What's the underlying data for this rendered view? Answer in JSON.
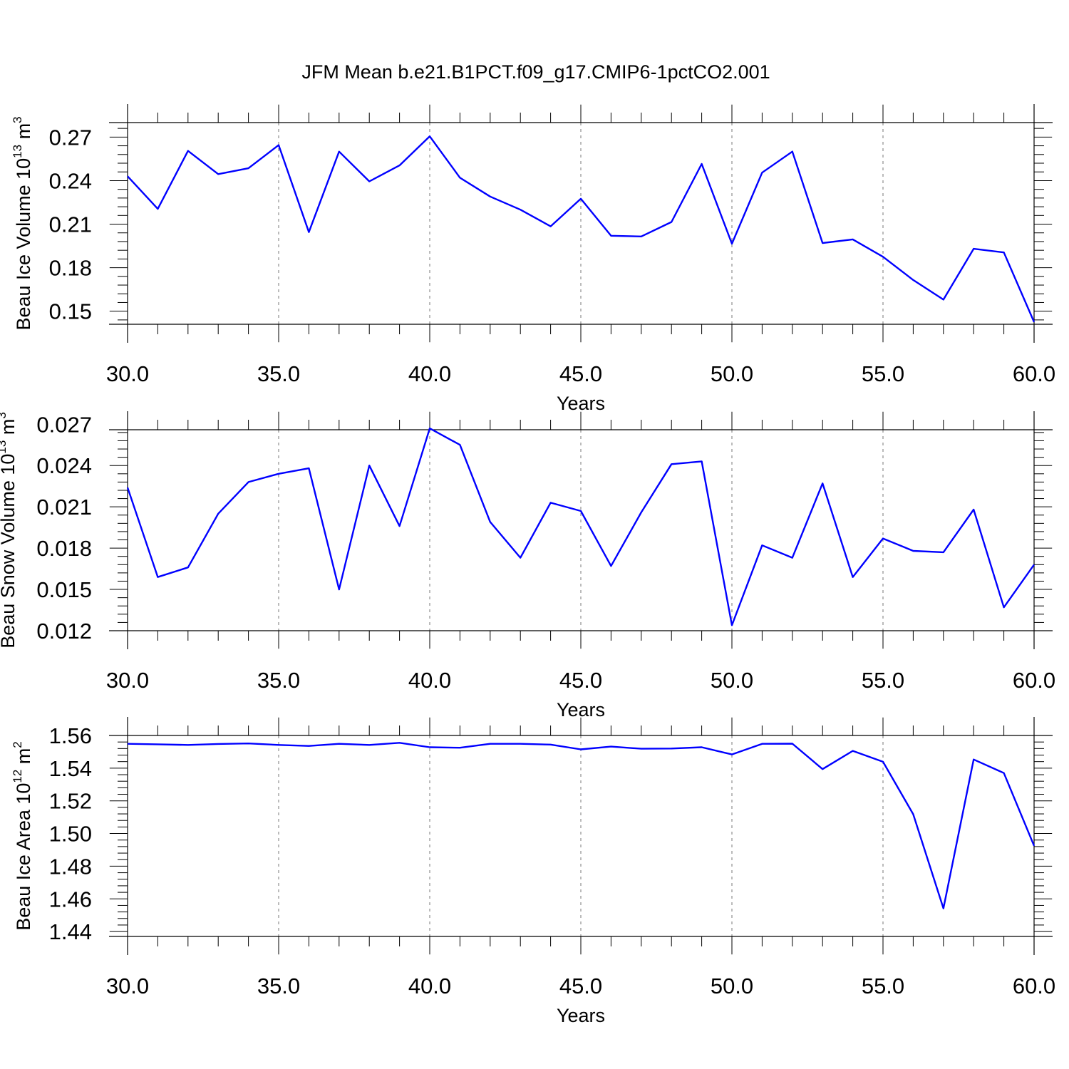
{
  "title": "JFM Mean b.e21.B1PCT.f09_g17.CMIP6-1pctCO2.001",
  "chart_data": [
    {
      "type": "line",
      "xlabel": "Years",
      "ylabel_main": "Beau Ice Volume 10",
      "ylabel_exp": "13",
      "ylabel_unit": " m",
      "ylabel_unit_exp": "3",
      "xlim": [
        30,
        60
      ],
      "ylim": [
        0.141,
        0.28
      ],
      "xticks": [
        30,
        35,
        40,
        45,
        50,
        55,
        60
      ],
      "xtick_labels": [
        "30.0",
        "35.0",
        "40.0",
        "45.0",
        "50.0",
        "55.0",
        "60.0"
      ],
      "yticks": [
        0.15,
        0.18,
        0.21,
        0.24,
        0.27
      ],
      "ytick_labels": [
        "0.15",
        "0.18",
        "0.21",
        "0.24",
        "0.27"
      ],
      "grid": "vertical-dashed",
      "series": [
        {
          "color": "#0000ff",
          "x": [
            30,
            31,
            32,
            33,
            34,
            35,
            36,
            37,
            38,
            39,
            40,
            41,
            42,
            43,
            44,
            45,
            46,
            47,
            48,
            49,
            50,
            51,
            52,
            53,
            54,
            55,
            56,
            57,
            58,
            59,
            60
          ],
          "y": [
            0.243,
            0.2205,
            0.2605,
            0.2445,
            0.2485,
            0.2645,
            0.2045,
            0.26,
            0.2395,
            0.2505,
            0.2705,
            0.242,
            0.229,
            0.22,
            0.2085,
            0.2275,
            0.202,
            0.2015,
            0.2115,
            0.2515,
            0.1965,
            0.2455,
            0.26,
            0.197,
            0.1995,
            0.1875,
            0.1715,
            0.158,
            0.193,
            0.1905,
            0.1425
          ]
        }
      ]
    },
    {
      "type": "line",
      "xlabel": "Years",
      "ylabel_main": "Beau Snow Volume 10",
      "ylabel_exp": "13",
      "ylabel_unit": " m",
      "ylabel_unit_exp": "3",
      "xlim": [
        30,
        60
      ],
      "ylim": [
        0.012,
        0.0266
      ],
      "xticks": [
        30,
        35,
        40,
        45,
        50,
        55,
        60
      ],
      "xtick_labels": [
        "30.0",
        "35.0",
        "40.0",
        "45.0",
        "50.0",
        "55.0",
        "60.0"
      ],
      "yticks": [
        0.012,
        0.015,
        0.018,
        0.021,
        0.024,
        0.027
      ],
      "ytick_labels": [
        "0.012",
        "0.015",
        "0.018",
        "0.021",
        "0.024",
        "0.027"
      ],
      "grid": "vertical-dashed",
      "series": [
        {
          "color": "#0000ff",
          "x": [
            30,
            31,
            32,
            33,
            34,
            35,
            36,
            37,
            38,
            39,
            40,
            41,
            42,
            43,
            44,
            45,
            46,
            47,
            48,
            49,
            50,
            51,
            52,
            53,
            54,
            55,
            56,
            57,
            58,
            59,
            60
          ],
          "y": [
            0.0224,
            0.0159,
            0.0166,
            0.0205,
            0.0228,
            0.0234,
            0.0238,
            0.015,
            0.024,
            0.0196,
            0.0267,
            0.0255,
            0.0199,
            0.0173,
            0.0213,
            0.0207,
            0.0167,
            0.0206,
            0.0241,
            0.0243,
            0.0124,
            0.0182,
            0.0173,
            0.0227,
            0.0159,
            0.0187,
            0.0178,
            0.0177,
            0.0208,
            0.0137,
            0.0168
          ]
        }
      ]
    },
    {
      "type": "line",
      "xlabel": "Years",
      "ylabel_main": "Beau Ice Area 10",
      "ylabel_exp": "12",
      "ylabel_unit": " m",
      "ylabel_unit_exp": "2",
      "xlim": [
        30,
        60
      ],
      "ylim": [
        1.437,
        1.56
      ],
      "xticks": [
        30,
        35,
        40,
        45,
        50,
        55,
        60
      ],
      "xtick_labels": [
        "30.0",
        "35.0",
        "40.0",
        "45.0",
        "50.0",
        "55.0",
        "60.0"
      ],
      "yticks": [
        1.44,
        1.46,
        1.48,
        1.5,
        1.52,
        1.54,
        1.56
      ],
      "ytick_labels": [
        "1.44",
        "1.46",
        "1.48",
        "1.50",
        "1.52",
        "1.54",
        "1.56"
      ],
      "grid": "vertical-dashed",
      "series": [
        {
          "color": "#0000ff",
          "x": [
            30,
            31,
            32,
            33,
            34,
            35,
            36,
            37,
            38,
            39,
            40,
            41,
            42,
            43,
            44,
            45,
            46,
            47,
            48,
            49,
            50,
            51,
            52,
            53,
            54,
            55,
            56,
            57,
            58,
            59,
            60
          ],
          "y": [
            1.5549,
            1.5546,
            1.5542,
            1.5548,
            1.5551,
            1.5542,
            1.5536,
            1.5549,
            1.5542,
            1.5555,
            1.5528,
            1.5525,
            1.5549,
            1.5549,
            1.5544,
            1.5515,
            1.5532,
            1.5519,
            1.552,
            1.5528,
            1.5484,
            1.5549,
            1.555,
            1.5394,
            1.5506,
            1.5439,
            1.5118,
            1.4542,
            1.5453,
            1.537,
            1.4925
          ]
        }
      ]
    }
  ]
}
